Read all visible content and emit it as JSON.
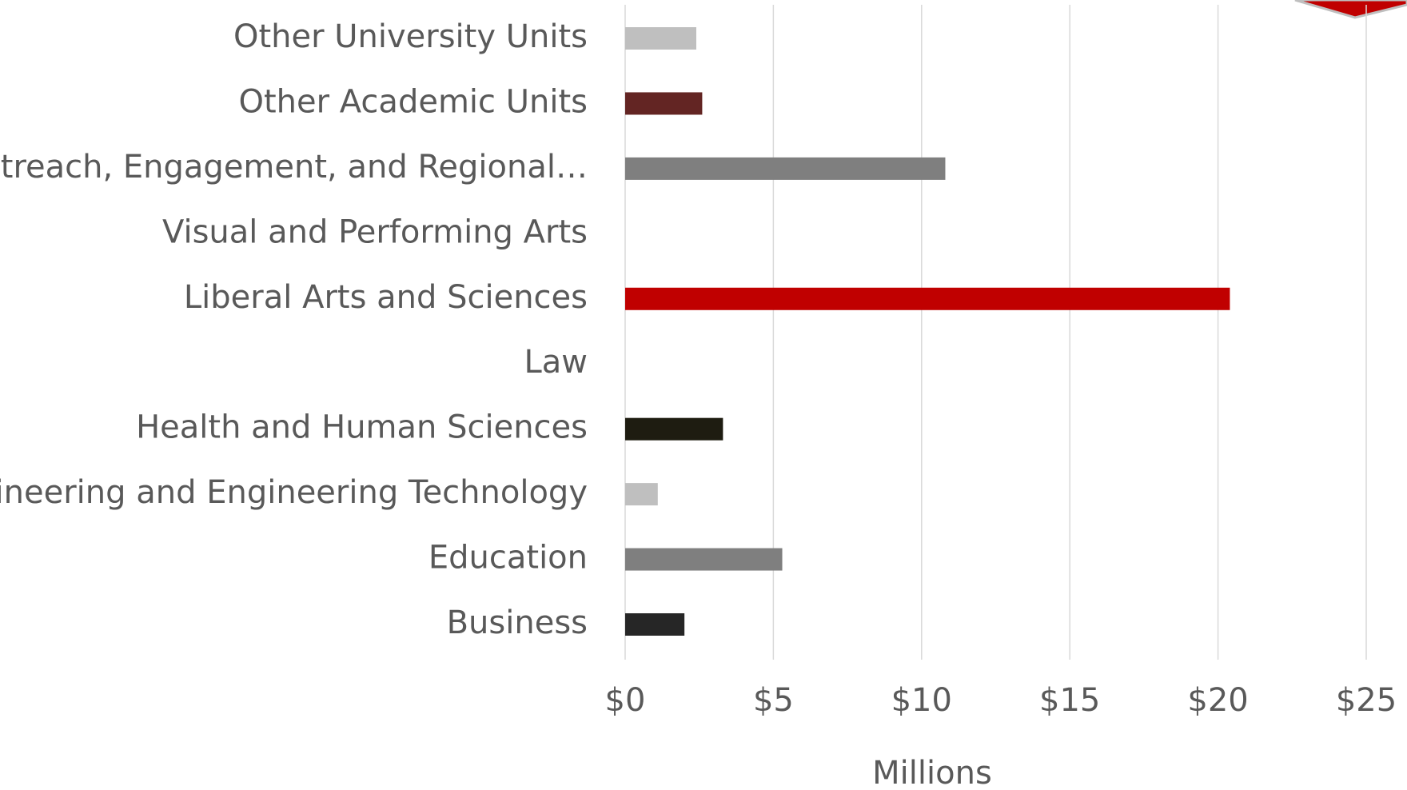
{
  "chart_data": {
    "type": "bar",
    "orientation": "horizontal",
    "categories": [
      "Business",
      "Education",
      "Engineering and Engineering Technology",
      "Health and Human Sciences",
      "Law",
      "Liberal Arts and Sciences",
      "Visual and Performing Arts",
      "Outreach, Engagement, and Regional…",
      "Other Academic Units",
      "Other University Units"
    ],
    "values": [
      2.0,
      5.3,
      1.1,
      3.3,
      0,
      20.4,
      0,
      10.8,
      2.6,
      2.4
    ],
    "colors": [
      "#262626",
      "#7f7f7f",
      "#bfbfbf",
      "#1e1c11",
      "#632523",
      "#c00000",
      "#262626",
      "#7f7f7f",
      "#632523",
      "#bfbfbf"
    ],
    "xlabel": "Millions",
    "xlim": [
      0,
      25
    ],
    "xticks": [
      {
        "value": 0,
        "label": "$0"
      },
      {
        "value": 5,
        "label": "$5"
      },
      {
        "value": 10,
        "label": "$10"
      },
      {
        "value": 15,
        "label": "$15"
      },
      {
        "value": 20,
        "label": "$20"
      },
      {
        "value": 25,
        "label": "$25"
      }
    ],
    "grid": true
  }
}
